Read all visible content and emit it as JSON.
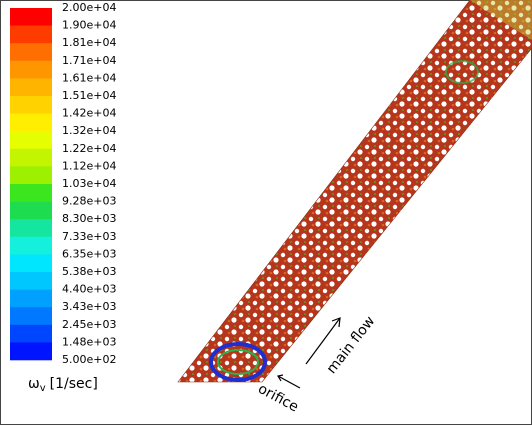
{
  "colorbar": {
    "labels": [
      "2.00e+04",
      "1.90e+04",
      "1.81e+04",
      "1.71e+04",
      "1.61e+04",
      "1.51e+04",
      "1.42e+04",
      "1.32e+04",
      "1.22e+04",
      "1.12e+04",
      "1.03e+04",
      "9.28e+03",
      "8.30e+03",
      "7.33e+03",
      "6.35e+03",
      "5.38e+03",
      "4.40e+03",
      "3.43e+03",
      "2.45e+03",
      "1.48e+03",
      "5.00e+02"
    ],
    "colors": [
      "#ff0000",
      "#ff3c00",
      "#ff6e00",
      "#ff9600",
      "#ffb400",
      "#ffd200",
      "#ffee00",
      "#e6ff00",
      "#c4f500",
      "#9cf000",
      "#3ce61e",
      "#1edc50",
      "#14e6a0",
      "#14f0dc",
      "#00e6ff",
      "#00c8ff",
      "#00a0ff",
      "#0078ff",
      "#0046ff",
      "#0014ff"
    ],
    "symbol": "ω",
    "subscript": "v",
    "unit": "[1/sec]"
  },
  "annotations": {
    "flow": "main flow",
    "orifice": "orifice"
  }
}
